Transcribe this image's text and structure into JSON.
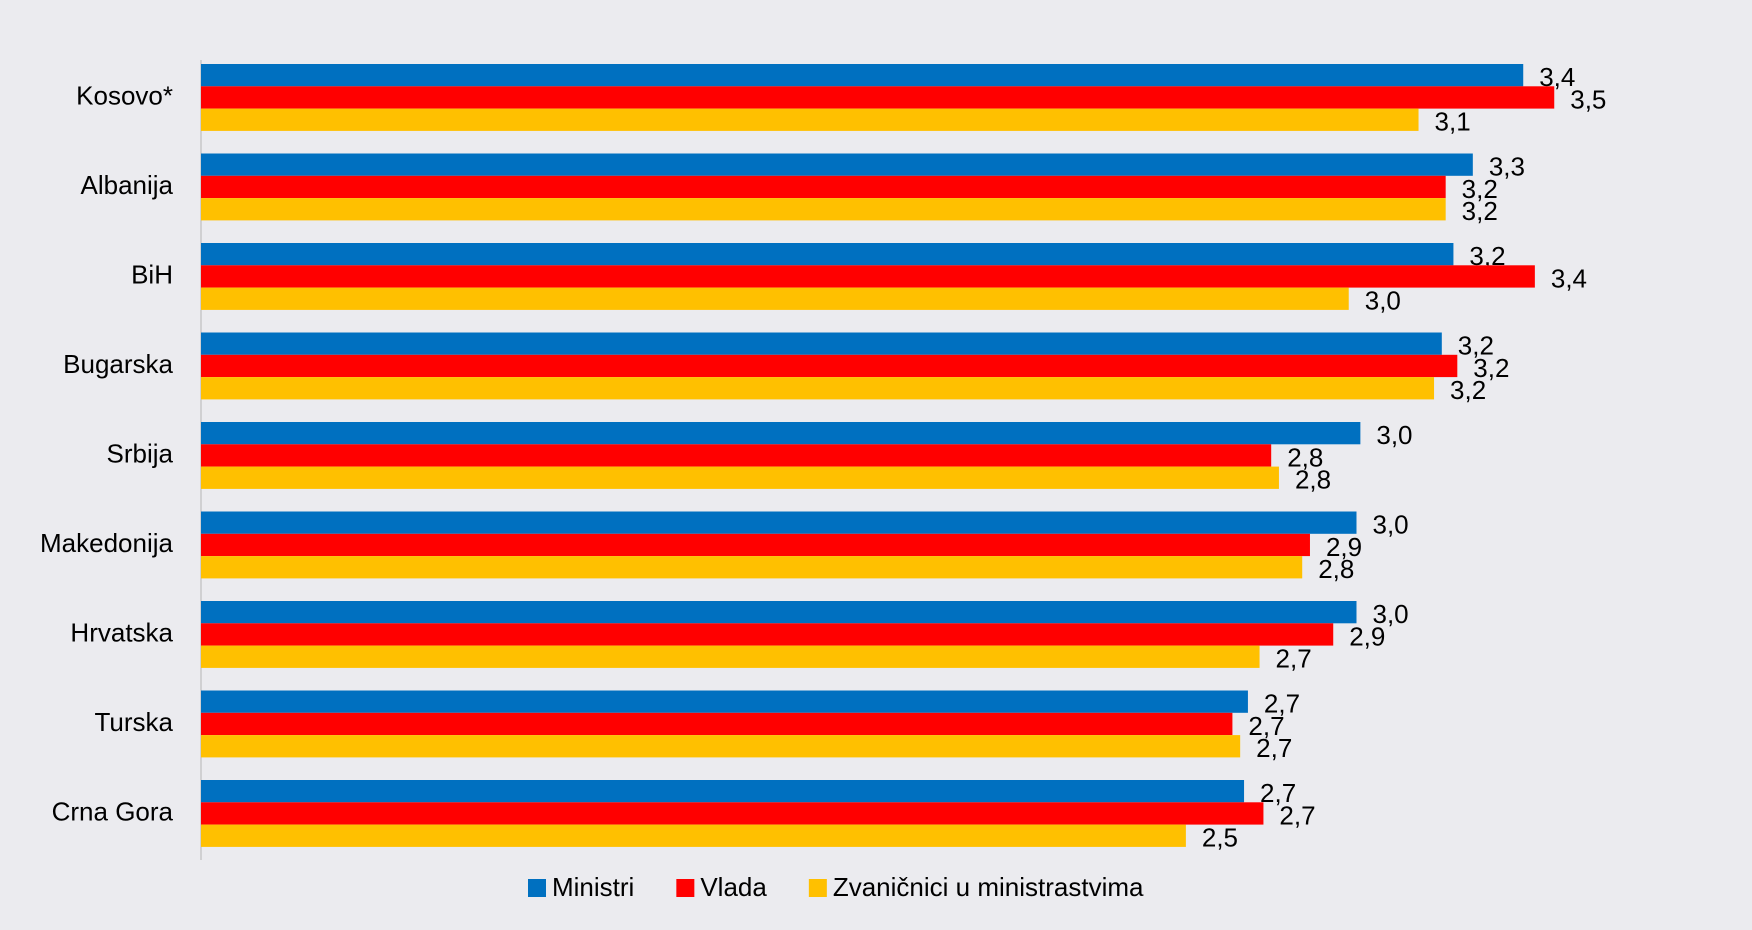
{
  "chart_data": {
    "type": "bar",
    "orientation": "horizontal",
    "categories": [
      "Kosovo*",
      "Albanija",
      "BiH",
      "Bugarska",
      "Srbija",
      "Makedonija",
      "Hrvatska",
      "Turska",
      "Crna Gora"
    ],
    "series": [
      {
        "name": "Ministri",
        "color": "#0070c0",
        "values": [
          3.41,
          3.28,
          3.23,
          3.2,
          2.99,
          2.98,
          2.98,
          2.7,
          2.69
        ],
        "value_labels": [
          "3,4",
          "3,3",
          "3,2",
          "3,2",
          "3,0",
          "3,0",
          "3,0",
          "2,7",
          "2,7"
        ]
      },
      {
        "name": "Vlada",
        "color": "#ff0000",
        "values": [
          3.49,
          3.21,
          3.44,
          3.24,
          2.76,
          2.86,
          2.92,
          2.66,
          2.74
        ],
        "value_labels": [
          "3,5",
          "3,2",
          "3,4",
          "3,2",
          "2,8",
          "2,9",
          "2,9",
          "2,7",
          "2,7"
        ]
      },
      {
        "name": "Zvaničnici u ministrastvima",
        "color": "#ffc000",
        "values": [
          3.14,
          3.21,
          2.96,
          3.18,
          2.78,
          2.84,
          2.73,
          2.68,
          2.54
        ],
        "value_labels": [
          "3,1",
          "3,2",
          "3,0",
          "3,2",
          "2,8",
          "2,8",
          "2,7",
          "2,7",
          "2,5"
        ]
      }
    ],
    "xlim": [
      0,
      4
    ],
    "legend": "bottom"
  }
}
